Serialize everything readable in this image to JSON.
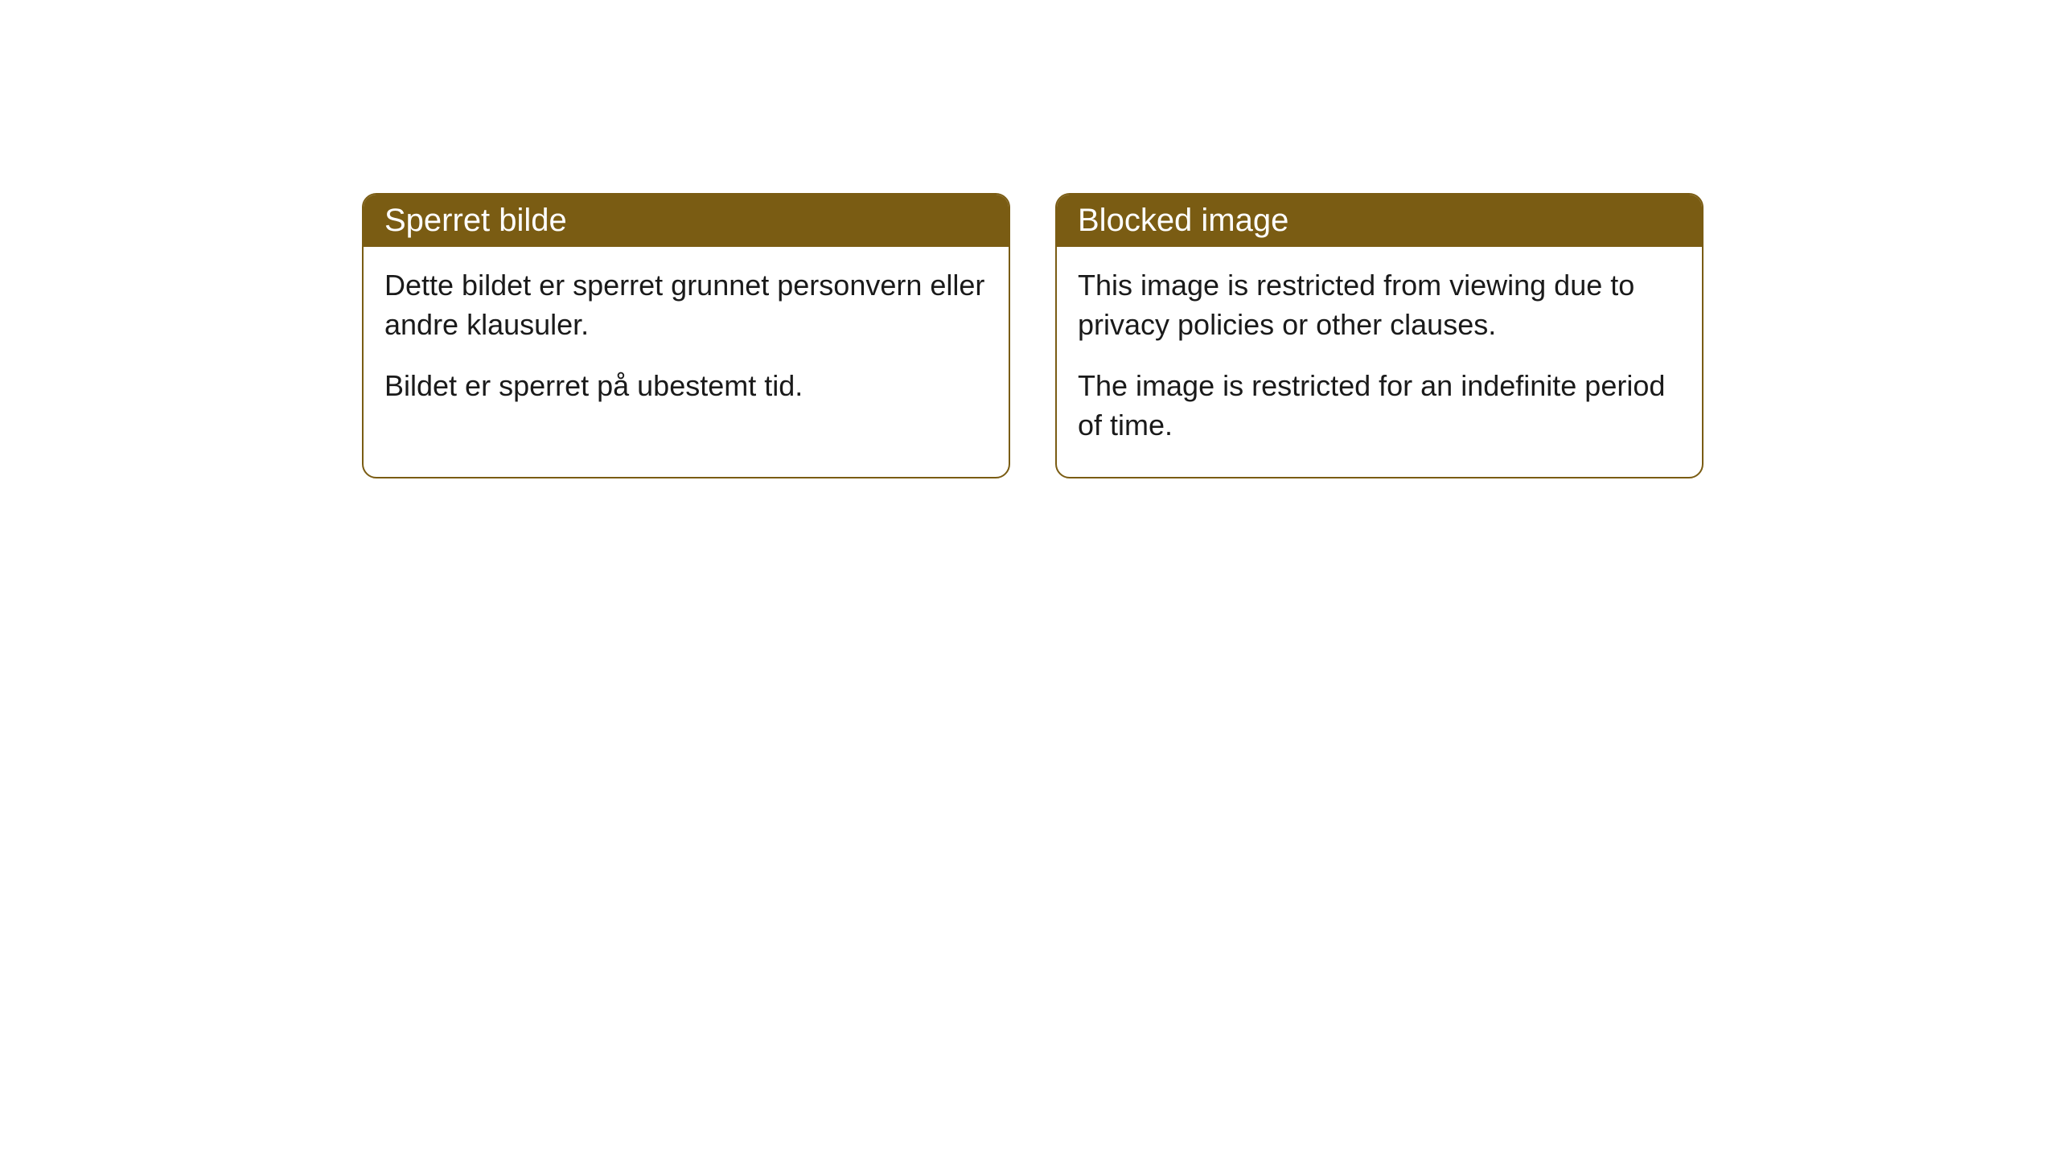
{
  "cards": [
    {
      "title": "Sperret bilde",
      "paragraph1": "Dette bildet er sperret grunnet personvern eller andre klausuler.",
      "paragraph2": "Bildet er sperret på ubestemt tid."
    },
    {
      "title": "Blocked image",
      "paragraph1": "This image is restricted from viewing due to privacy policies or other clauses.",
      "paragraph2": "The image is restricted for an indefinite period of time."
    }
  ],
  "styling": {
    "header_background": "#7a5c13",
    "header_text_color": "#ffffff",
    "border_color": "#7a5c13",
    "body_background": "#ffffff",
    "body_text_color": "#1a1a1a",
    "border_radius": 18,
    "title_fontsize": 40,
    "body_fontsize": 36
  }
}
